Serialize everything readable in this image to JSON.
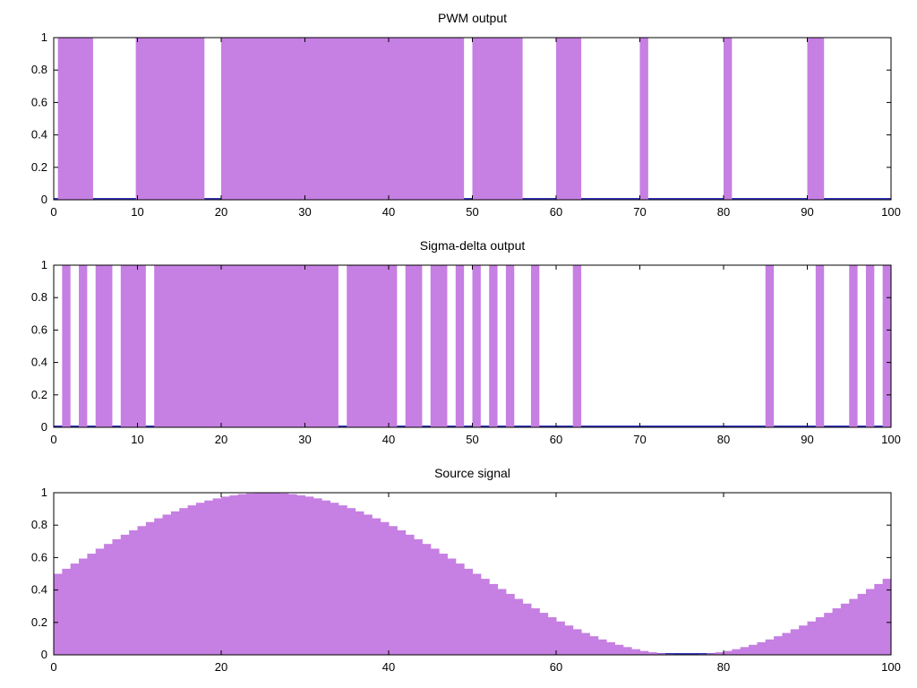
{
  "colors": {
    "background": "#ffffff",
    "fill": "#c67fe2",
    "baseline": "#3333bb",
    "axis": "#000000",
    "text": "#000000"
  },
  "chart_data": [
    {
      "id": "pwm",
      "type": "area",
      "title": "PWM output",
      "xlim": [
        0,
        100
      ],
      "ylim": [
        0,
        1
      ],
      "grid": false,
      "legend": "none",
      "xticks": {
        "positions": [
          0,
          10,
          20,
          30,
          40,
          50,
          60,
          70,
          80,
          90,
          100
        ],
        "labels": [
          "0",
          "10",
          "20",
          "30",
          "40",
          "50",
          "60",
          "70",
          "80",
          "90",
          "100"
        ]
      },
      "yticks": {
        "positions": [
          0,
          0.2,
          0.4,
          0.6,
          0.8,
          1
        ],
        "labels": [
          "0",
          "0.2",
          "0.4",
          "0.6",
          "0.8",
          "1"
        ]
      },
      "high_value": 1,
      "low_value": 0,
      "high_segments": [
        [
          0.5,
          4.7
        ],
        [
          9.8,
          18
        ],
        [
          20,
          49
        ],
        [
          50,
          56
        ],
        [
          60,
          63
        ],
        [
          70,
          71
        ],
        [
          80,
          81
        ],
        [
          90,
          92
        ]
      ]
    },
    {
      "id": "sigma-delta",
      "type": "area",
      "title": "Sigma-delta output",
      "xlim": [
        0,
        100
      ],
      "ylim": [
        0,
        1
      ],
      "grid": false,
      "legend": "none",
      "xticks": {
        "positions": [
          0,
          10,
          20,
          30,
          40,
          50,
          60,
          70,
          80,
          90,
          100
        ],
        "labels": [
          "0",
          "10",
          "20",
          "30",
          "40",
          "50",
          "60",
          "70",
          "80",
          "90",
          "100"
        ]
      },
      "yticks": {
        "positions": [
          0,
          0.2,
          0.4,
          0.6,
          0.8,
          1
        ],
        "labels": [
          "0",
          "0.2",
          "0.4",
          "0.6",
          "0.8",
          "1"
        ]
      },
      "high_value": 1,
      "low_value": 0,
      "high_segments": [
        [
          1,
          2
        ],
        [
          3,
          4
        ],
        [
          5,
          7
        ],
        [
          8,
          11
        ],
        [
          12,
          34
        ],
        [
          35,
          41
        ],
        [
          42,
          44
        ],
        [
          45,
          47
        ],
        [
          48,
          49
        ],
        [
          50,
          51
        ],
        [
          52,
          53
        ],
        [
          54,
          55
        ],
        [
          57,
          58
        ],
        [
          62,
          63
        ],
        [
          85,
          86
        ],
        [
          91,
          92
        ],
        [
          95,
          96
        ],
        [
          97,
          98
        ],
        [
          99,
          100
        ]
      ]
    },
    {
      "id": "source",
      "type": "bar",
      "title": "Source signal",
      "xlim": [
        0,
        100
      ],
      "ylim": [
        0,
        1
      ],
      "grid": false,
      "legend": "none",
      "x_start": 0,
      "x_step": 1,
      "xticks": {
        "positions": [
          0,
          20,
          40,
          60,
          80,
          100
        ],
        "labels": [
          "0",
          "20",
          "40",
          "60",
          "80",
          "100"
        ]
      },
      "yticks": {
        "positions": [
          0,
          0.2,
          0.4,
          0.6,
          0.8,
          1
        ],
        "labels": [
          "0",
          "0.2",
          "0.4",
          "0.6",
          "0.8",
          "1"
        ]
      },
      "values": [
        0.5,
        0.531,
        0.563,
        0.594,
        0.624,
        0.655,
        0.684,
        0.713,
        0.741,
        0.768,
        0.794,
        0.819,
        0.842,
        0.865,
        0.885,
        0.905,
        0.922,
        0.938,
        0.952,
        0.965,
        0.976,
        0.984,
        0.991,
        0.996,
        0.999,
        1.0,
        0.999,
        0.996,
        0.991,
        0.984,
        0.976,
        0.965,
        0.952,
        0.938,
        0.922,
        0.905,
        0.885,
        0.865,
        0.842,
        0.819,
        0.794,
        0.768,
        0.741,
        0.713,
        0.684,
        0.655,
        0.624,
        0.594,
        0.563,
        0.531,
        0.5,
        0.469,
        0.437,
        0.406,
        0.376,
        0.345,
        0.316,
        0.287,
        0.259,
        0.232,
        0.206,
        0.181,
        0.158,
        0.135,
        0.115,
        0.095,
        0.078,
        0.062,
        0.048,
        0.035,
        0.024,
        0.016,
        0.009,
        0.004,
        0.001,
        0.0,
        0.001,
        0.004,
        0.009,
        0.016,
        0.024,
        0.035,
        0.048,
        0.062,
        0.078,
        0.095,
        0.115,
        0.135,
        0.158,
        0.181,
        0.206,
        0.232,
        0.259,
        0.287,
        0.316,
        0.345,
        0.376,
        0.406,
        0.437,
        0.469
      ]
    }
  ]
}
